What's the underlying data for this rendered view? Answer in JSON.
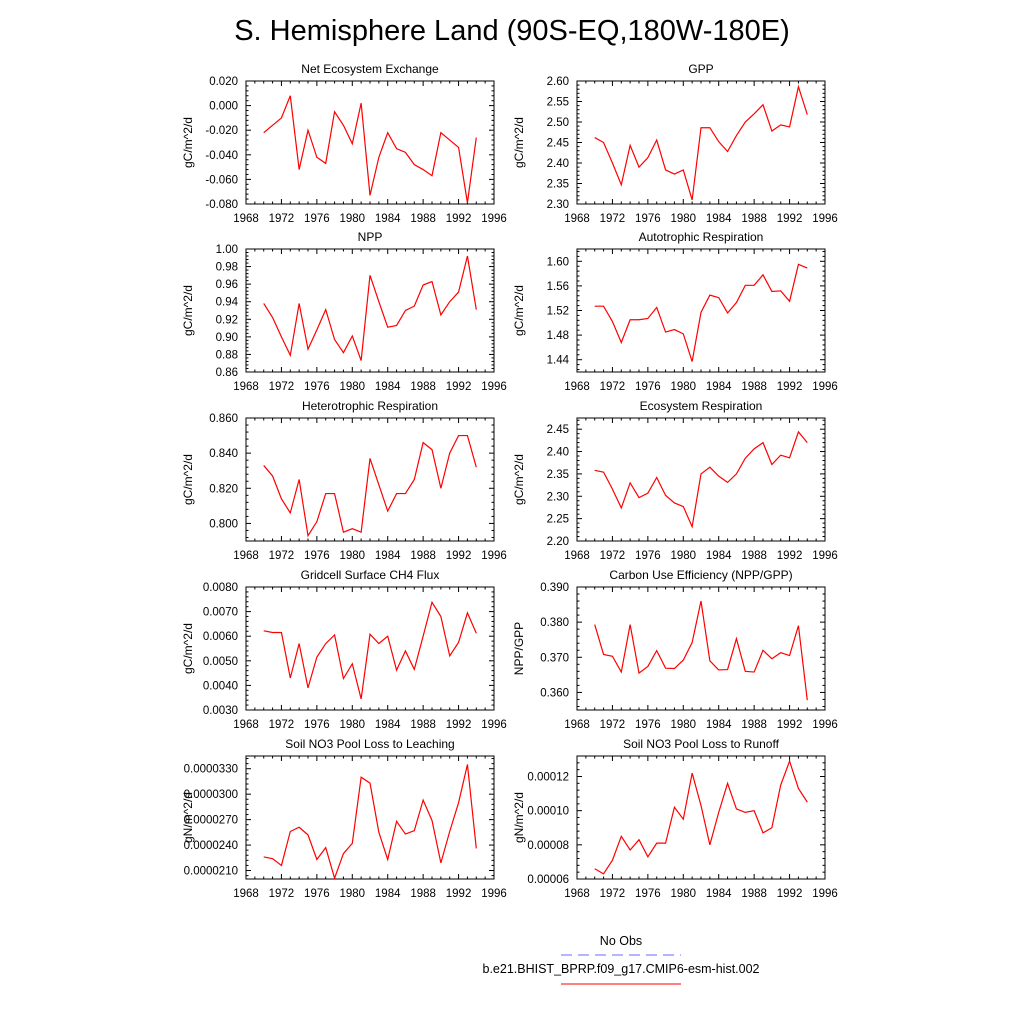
{
  "title": "S. Hemisphere Land (90S-EQ,180W-180E)",
  "legend": [
    {
      "label": "No Obs",
      "color": "#6b6bff",
      "dashed": true
    },
    {
      "label": "b.e21.BHIST_BPRP.f09_g17.CMIP6-esm-hist.002",
      "color": "#ff0000",
      "dashed": false
    }
  ],
  "years": [
    1970,
    1971,
    1972,
    1973,
    1974,
    1975,
    1976,
    1977,
    1978,
    1979,
    1980,
    1981,
    1982,
    1983,
    1984,
    1985,
    1986,
    1987,
    1988,
    1989,
    1990,
    1991,
    1992,
    1993,
    1994
  ],
  "xlim": [
    1968,
    1996
  ],
  "xticks": [
    1968,
    1972,
    1976,
    1980,
    1984,
    1988,
    1992,
    1996
  ],
  "line_color": "#ff0000",
  "chart_data": [
    {
      "type": "line",
      "title": "Net Ecosystem Exchange",
      "ylabel": "gC/m^2/d",
      "ylim": [
        -0.08,
        0.02
      ],
      "yticks": [
        -0.08,
        -0.06,
        -0.04,
        -0.02,
        0.0,
        0.02
      ],
      "ytick_labels": [
        "-0.080",
        "-0.060",
        "-0.040",
        "-0.020",
        "0.000",
        "0.020"
      ],
      "values": [
        -0.022,
        -0.016,
        -0.01,
        0.008,
        -0.052,
        -0.02,
        -0.042,
        -0.047,
        -0.005,
        -0.016,
        -0.031,
        0.002,
        -0.073,
        -0.042,
        -0.022,
        -0.035,
        -0.038,
        -0.048,
        -0.052,
        -0.057,
        -0.022,
        -0.028,
        -0.034,
        -0.079,
        -0.026
      ]
    },
    {
      "type": "line",
      "title": "GPP",
      "ylabel": "gC/m^2/d",
      "ylim": [
        2.3,
        2.6
      ],
      "yticks": [
        2.3,
        2.35,
        2.4,
        2.45,
        2.5,
        2.55,
        2.6
      ],
      "ytick_labels": [
        "2.30",
        "2.35",
        "2.40",
        "2.45",
        "2.50",
        "2.55",
        "2.60"
      ],
      "values": [
        2.462,
        2.45,
        2.4,
        2.347,
        2.443,
        2.39,
        2.413,
        2.456,
        2.383,
        2.373,
        2.383,
        2.31,
        2.486,
        2.486,
        2.452,
        2.428,
        2.467,
        2.5,
        2.52,
        2.542,
        2.478,
        2.493,
        2.488,
        2.586,
        2.518
      ]
    },
    {
      "type": "line",
      "title": "NPP",
      "ylabel": "gC/m^2/d",
      "ylim": [
        0.86,
        1.0
      ],
      "yticks": [
        0.86,
        0.88,
        0.9,
        0.92,
        0.94,
        0.96,
        0.98,
        1.0
      ],
      "ytick_labels": [
        "0.86",
        "0.88",
        "0.90",
        "0.92",
        "0.94",
        "0.96",
        "0.98",
        "1.00"
      ],
      "values": [
        0.938,
        0.922,
        0.9,
        0.879,
        0.938,
        0.886,
        0.908,
        0.931,
        0.897,
        0.882,
        0.901,
        0.873,
        0.97,
        0.94,
        0.911,
        0.913,
        0.93,
        0.935,
        0.959,
        0.963,
        0.925,
        0.94,
        0.951,
        0.992,
        0.931
      ]
    },
    {
      "type": "line",
      "title": "Autotrophic Respiration",
      "ylabel": "gC/m^2/d",
      "ylim": [
        1.42,
        1.62
      ],
      "yticks": [
        1.44,
        1.48,
        1.52,
        1.56,
        1.6
      ],
      "ytick_labels": [
        "1.44",
        "1.48",
        "1.52",
        "1.56",
        "1.60"
      ],
      "values": [
        1.527,
        1.527,
        1.502,
        1.468,
        1.505,
        1.505,
        1.507,
        1.525,
        1.485,
        1.489,
        1.482,
        1.437,
        1.517,
        1.545,
        1.541,
        1.516,
        1.533,
        1.561,
        1.561,
        1.578,
        1.551,
        1.552,
        1.535,
        1.595,
        1.589
      ]
    },
    {
      "type": "line",
      "title": "Heterotrophic Respiration",
      "ylabel": "gC/m^2/d",
      "ylim": [
        0.79,
        0.86
      ],
      "yticks": [
        0.8,
        0.82,
        0.84,
        0.86
      ],
      "ytick_labels": [
        "0.800",
        "0.820",
        "0.840",
        "0.860"
      ],
      "values": [
        0.833,
        0.827,
        0.814,
        0.806,
        0.825,
        0.793,
        0.801,
        0.817,
        0.817,
        0.795,
        0.797,
        0.795,
        0.837,
        0.822,
        0.807,
        0.817,
        0.817,
        0.825,
        0.846,
        0.842,
        0.82,
        0.84,
        0.85,
        0.85,
        0.832
      ]
    },
    {
      "type": "line",
      "title": "Ecosystem Respiration",
      "ylabel": "gC/m^2/d",
      "ylim": [
        2.2,
        2.475
      ],
      "yticks": [
        2.2,
        2.25,
        2.3,
        2.35,
        2.4,
        2.45
      ],
      "ytick_labels": [
        "2.20",
        "2.25",
        "2.30",
        "2.35",
        "2.40",
        "2.45"
      ],
      "values": [
        2.358,
        2.354,
        2.316,
        2.274,
        2.33,
        2.297,
        2.307,
        2.342,
        2.302,
        2.285,
        2.277,
        2.232,
        2.35,
        2.365,
        2.345,
        2.331,
        2.35,
        2.385,
        2.406,
        2.42,
        2.371,
        2.392,
        2.386,
        2.444,
        2.42
      ]
    },
    {
      "type": "line",
      "title": "Gridcell Surface CH4 Flux",
      "ylabel": "gC/m^2/d",
      "ylim": [
        0.003,
        0.008
      ],
      "yticks": [
        0.003,
        0.004,
        0.005,
        0.006,
        0.007,
        0.008
      ],
      "ytick_labels": [
        "0.0030",
        "0.0040",
        "0.0050",
        "0.0060",
        "0.0070",
        "0.0080"
      ],
      "values": [
        0.00622,
        0.00615,
        0.00615,
        0.0043,
        0.0057,
        0.0039,
        0.00515,
        0.0057,
        0.00605,
        0.00428,
        0.00488,
        0.00345,
        0.00608,
        0.0057,
        0.006,
        0.00462,
        0.0054,
        0.00465,
        0.006,
        0.00738,
        0.0068,
        0.0052,
        0.00575,
        0.00695,
        0.00612
      ]
    },
    {
      "type": "line",
      "title": "Carbon Use Efficiency (NPP/GPP)",
      "ylabel": "NPP/GPP",
      "ylim": [
        0.355,
        0.39
      ],
      "yticks": [
        0.36,
        0.37,
        0.38,
        0.39
      ],
      "ytick_labels": [
        "0.360",
        "0.370",
        "0.380",
        "0.390"
      ],
      "values": [
        0.3793,
        0.3708,
        0.3703,
        0.3658,
        0.3793,
        0.3655,
        0.3674,
        0.3719,
        0.3669,
        0.3668,
        0.3692,
        0.3742,
        0.386,
        0.369,
        0.3664,
        0.3665,
        0.3753,
        0.366,
        0.3658,
        0.372,
        0.3696,
        0.3713,
        0.3705,
        0.379,
        0.3578
      ]
    },
    {
      "type": "line",
      "title": "Soil NO3 Pool Loss to Leaching",
      "ylabel": "gN/m^2/d",
      "ylim": [
        2e-05,
        3.45e-05
      ],
      "yticks": [
        2.1e-05,
        2.4e-05,
        2.7e-05,
        3e-05,
        3.3e-05
      ],
      "ytick_labels": [
        "0.0000210",
        "0.0000240",
        "0.0000270",
        "0.0000300",
        "0.0000330"
      ],
      "values": [
        2.26e-05,
        2.24e-05,
        2.16e-05,
        2.56e-05,
        2.61e-05,
        2.52e-05,
        2.23e-05,
        2.37e-05,
        2.01e-05,
        2.3e-05,
        2.42e-05,
        3.2e-05,
        3.13e-05,
        2.55e-05,
        2.23e-05,
        2.68e-05,
        2.53e-05,
        2.57e-05,
        2.93e-05,
        2.69e-05,
        2.19e-05,
        2.56e-05,
        2.9e-05,
        3.35e-05,
        2.36e-05
      ]
    },
    {
      "type": "line",
      "title": "Soil NO3 Pool Loss to Runoff",
      "ylabel": "gN/m^2/d",
      "ylim": [
        6e-05,
        0.000132
      ],
      "yticks": [
        6e-05,
        8e-05,
        0.0001,
        0.00012
      ],
      "ytick_labels": [
        "0.00006",
        "0.00008",
        "0.00010",
        "0.00012"
      ],
      "values": [
        6.6e-05,
        6.3e-05,
        7.1e-05,
        8.5e-05,
        7.7e-05,
        8.3e-05,
        7.3e-05,
        8.1e-05,
        8.1e-05,
        0.000102,
        9.5e-05,
        0.000122,
        0.000103,
        8e-05,
        9.9e-05,
        0.000116,
        0.000101,
        9.9e-05,
        0.0001,
        8.7e-05,
        9e-05,
        0.000115,
        0.000129,
        0.000113,
        0.000105
      ]
    }
  ]
}
